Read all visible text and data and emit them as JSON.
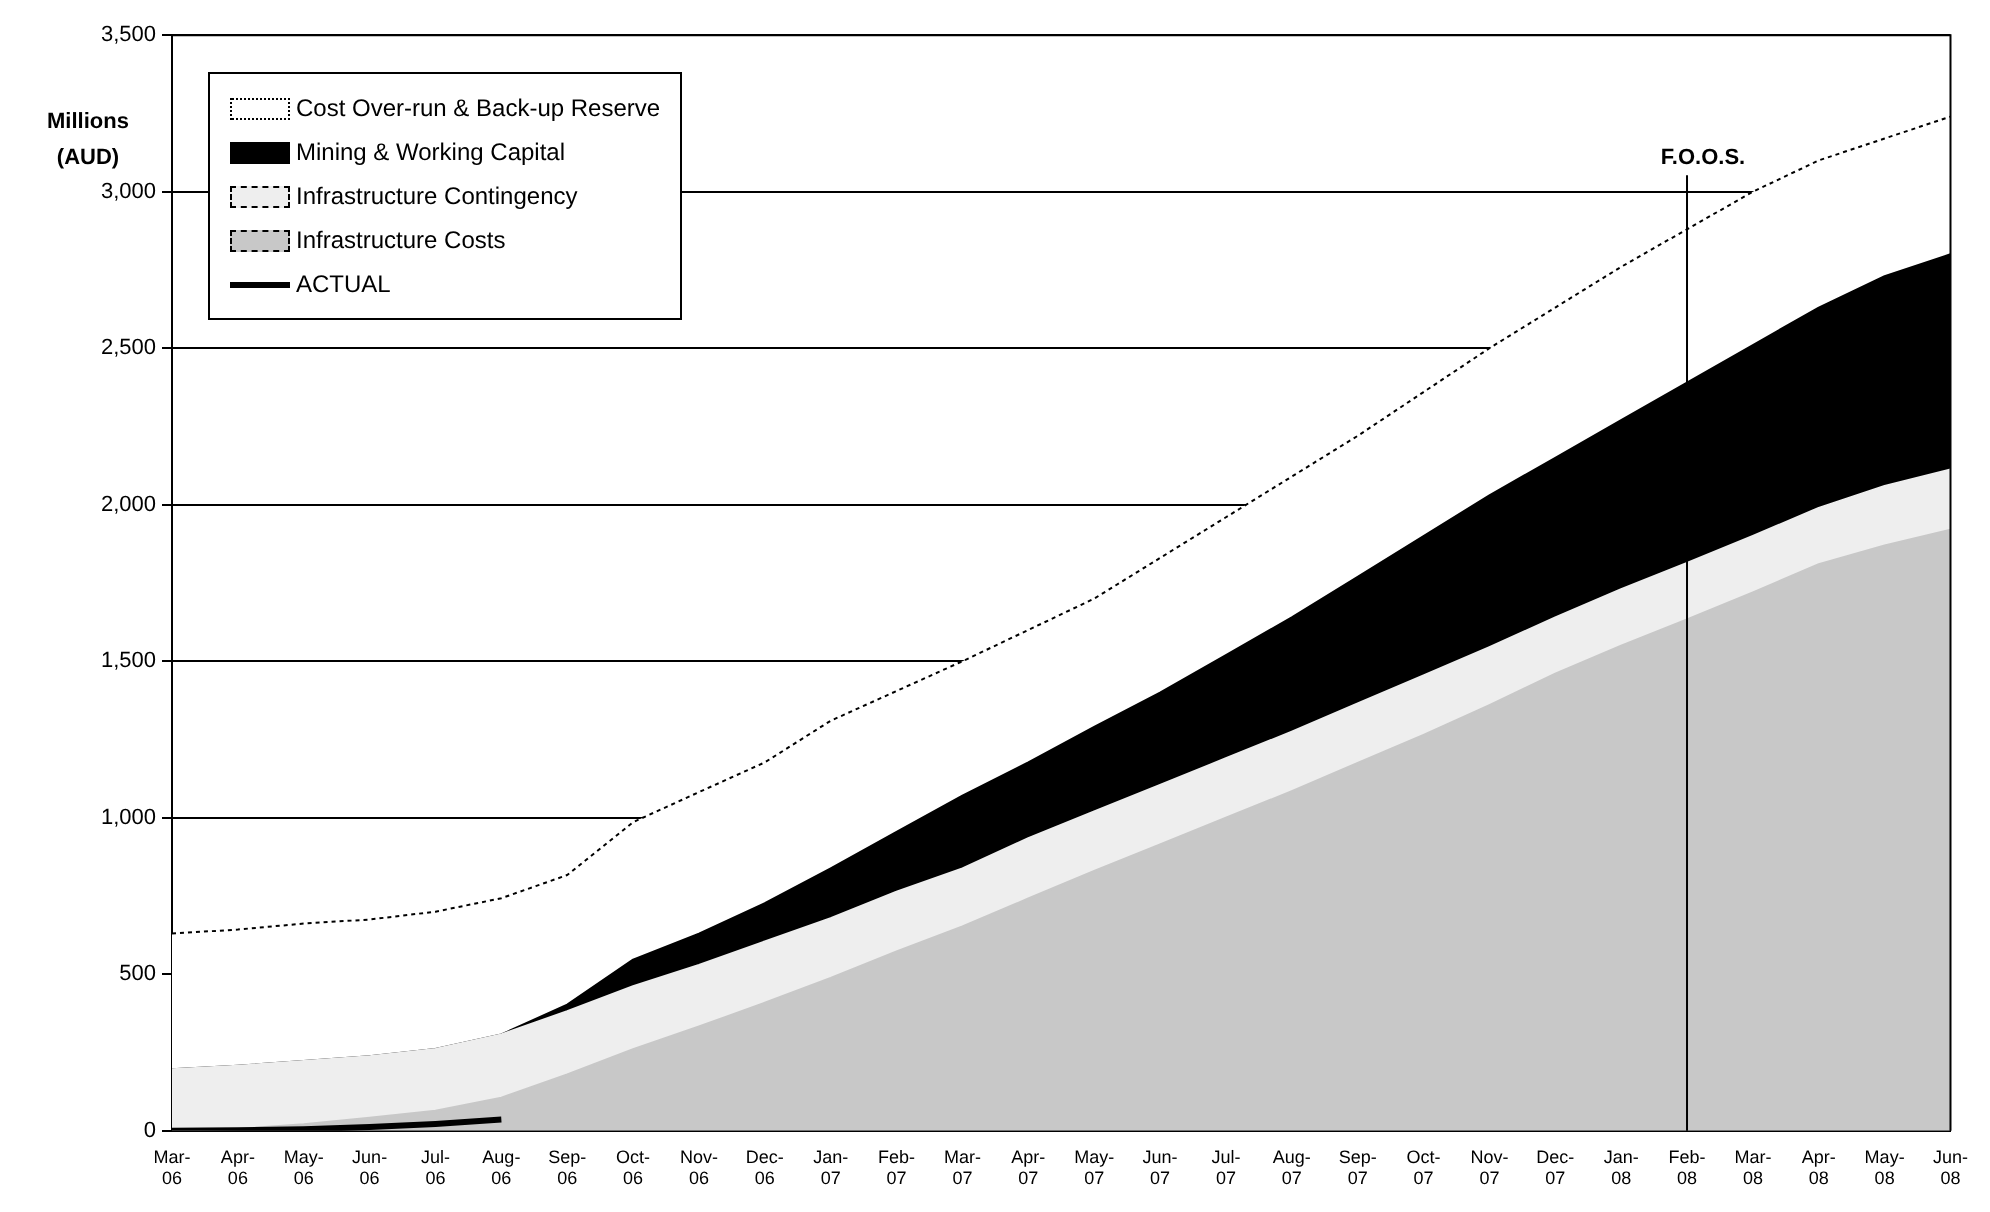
{
  "chart_data": {
    "type": "area",
    "ylabel": "Millions (AUD)",
    "categories": [
      "Mar-06",
      "Apr-06",
      "May-06",
      "Jun-06",
      "Jul-06",
      "Aug-06",
      "Sep-06",
      "Oct-06",
      "Nov-06",
      "Dec-06",
      "Jan-07",
      "Feb-07",
      "Mar-07",
      "Apr-07",
      "May-07",
      "Jun-07",
      "Jul-07",
      "Aug-07",
      "Sep-07",
      "Oct-07",
      "Nov-07",
      "Dec-07",
      "Jan-08",
      "Feb-08",
      "Mar-08",
      "Apr-08",
      "May-08",
      "Jun-08"
    ],
    "stacked": true,
    "series": [
      {
        "name": "Infrastructure Costs",
        "color": "#c8c8c8",
        "values": [
          0,
          6,
          21,
          42,
          64,
          106,
          180,
          261,
          333,
          409,
          488,
          573,
          653,
          742,
          830,
          915,
          1000,
          1085,
          1175,
          1265,
          1360,
          1460,
          1550,
          1634,
          1720,
          1810,
          1870,
          1920
        ]
      },
      {
        "name": "Infrastructure Contingency",
        "color": "#eeeeee",
        "values": [
          197,
          202,
          202,
          196,
          197,
          202,
          202,
          201,
          197,
          196,
          191,
          191,
          185,
          193,
          190,
          190,
          190,
          190,
          190,
          190,
          185,
          180,
          180,
          180,
          180,
          180,
          190,
          193
        ]
      },
      {
        "name": "Mining & Working Capital",
        "color": "#000000",
        "values": [
          0,
          0,
          0,
          0,
          0,
          0,
          21,
          85,
          100,
          122,
          159,
          191,
          233,
          242,
          270,
          295,
          330,
          365,
          405,
          445,
          485,
          510,
          540,
          576,
          610,
          640,
          670,
          687
        ]
      },
      {
        "name": "Cost Over-run & Back-up Reserve",
        "color": "#ffffff",
        "line_style": "dotted",
        "values": [
          433,
          435,
          439,
          437,
          439,
          435,
          414,
          439,
          452,
          450,
          472,
          450,
          429,
          423,
          410,
          430,
          440,
          450,
          450,
          460,
          470,
          480,
          490,
          490,
          490,
          470,
          440,
          440
        ]
      },
      {
        "name": "ACTUAL",
        "type": "line",
        "color": "#000000",
        "values": [
          0,
          2,
          5,
          12,
          22,
          36,
          null,
          null,
          null,
          null,
          null,
          null,
          null,
          null,
          null,
          null,
          null,
          null,
          null,
          null,
          null,
          null,
          null,
          null,
          null,
          null,
          null,
          null
        ]
      }
    ],
    "ylim": [
      0,
      3500
    ],
    "yticks": [
      0,
      500,
      {
        "value": 1000,
        "label": "1,000"
      },
      {
        "value": 1500,
        "label": "1,500"
      },
      {
        "value": 2000,
        "label": "2,000"
      },
      {
        "value": 2500,
        "label": "2,500"
      },
      {
        "value": 3000,
        "label": "3,000"
      },
      {
        "value": 3500,
        "label": "3,500"
      }
    ],
    "ref_lines": [
      {
        "axis": "x",
        "value": "Feb-08",
        "label": "F.O.O.S."
      }
    ],
    "grid": "y",
    "legend": "top left",
    "marker": "none"
  }
}
